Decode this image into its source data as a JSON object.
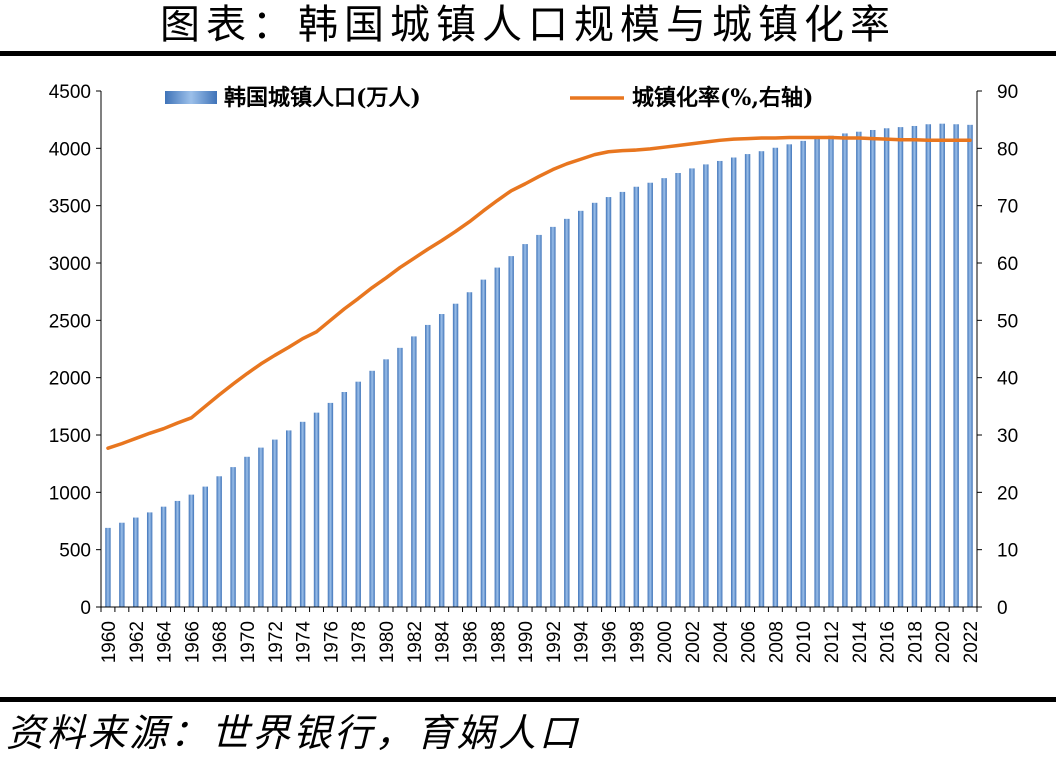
{
  "title": "图表：韩国城镇人口规模与城镇化率",
  "source": "资料来源：世界银行，育娲人口",
  "chart_data": {
    "type": "bar+line",
    "legend": [
      "韩国城镇人口(万人)",
      "城镇化率(%,右轴)"
    ],
    "legend_position": "top",
    "grid": false,
    "colors": {
      "bar": "#5b8fd0",
      "line": "#e8761f"
    },
    "left_axis": {
      "ylim": [
        0,
        4500
      ],
      "ticks": [
        0,
        500,
        1000,
        1500,
        2000,
        2500,
        3000,
        3500,
        4000,
        4500
      ]
    },
    "right_axis": {
      "ylim": [
        0,
        90
      ],
      "ticks": [
        0,
        10,
        20,
        30,
        40,
        50,
        60,
        70,
        80,
        90
      ]
    },
    "x_tick_labels": [
      "1960",
      "1962",
      "1964",
      "1966",
      "1968",
      "1970",
      "1972",
      "1974",
      "1976",
      "1978",
      "1980",
      "1982",
      "1984",
      "1986",
      "1988",
      "1990",
      "1992",
      "1994",
      "1996",
      "1998",
      "2000",
      "2002",
      "2004",
      "2006",
      "2008",
      "2010",
      "2012",
      "2014",
      "2016",
      "2018",
      "2020",
      "2022"
    ],
    "x": [
      1960,
      1961,
      1962,
      1963,
      1964,
      1965,
      1966,
      1967,
      1968,
      1969,
      1970,
      1971,
      1972,
      1973,
      1974,
      1975,
      1976,
      1977,
      1978,
      1979,
      1980,
      1981,
      1982,
      1983,
      1984,
      1985,
      1986,
      1987,
      1988,
      1989,
      1990,
      1991,
      1992,
      1993,
      1994,
      1995,
      1996,
      1997,
      1998,
      1999,
      2000,
      2001,
      2002,
      2003,
      2004,
      2005,
      2006,
      2007,
      2008,
      2009,
      2010,
      2011,
      2012,
      2013,
      2014,
      2015,
      2016,
      2017,
      2018,
      2019,
      2020,
      2021,
      2022
    ],
    "series": [
      {
        "name": "韩国城镇人口(万人)",
        "axis": "left",
        "type": "bar",
        "values": [
          690,
          735,
          780,
          825,
          875,
          925,
          980,
          1050,
          1140,
          1220,
          1310,
          1390,
          1460,
          1540,
          1615,
          1695,
          1780,
          1875,
          1965,
          2060,
          2160,
          2260,
          2360,
          2460,
          2555,
          2645,
          2745,
          2855,
          2960,
          3060,
          3165,
          3245,
          3315,
          3385,
          3455,
          3525,
          3575,
          3620,
          3665,
          3700,
          3740,
          3785,
          3825,
          3860,
          3890,
          3920,
          3950,
          3975,
          4005,
          4035,
          4065,
          4090,
          4110,
          4130,
          4145,
          4160,
          4175,
          4185,
          4195,
          4210,
          4215,
          4210,
          4205
        ]
      },
      {
        "name": "城镇化率(%,右轴)",
        "axis": "right",
        "type": "line",
        "values": [
          27.7,
          28.5,
          29.4,
          30.3,
          31.1,
          32.1,
          33.0,
          35.0,
          37.0,
          38.9,
          40.7,
          42.4,
          43.9,
          45.3,
          46.8,
          48.0,
          50.0,
          52.0,
          53.8,
          55.7,
          57.4,
          59.2,
          60.8,
          62.4,
          63.9,
          65.5,
          67.2,
          69.1,
          70.9,
          72.6,
          73.8,
          75.1,
          76.3,
          77.3,
          78.1,
          78.9,
          79.4,
          79.6,
          79.7,
          79.9,
          80.2,
          80.5,
          80.8,
          81.1,
          81.4,
          81.6,
          81.7,
          81.8,
          81.8,
          81.9,
          81.9,
          81.9,
          81.9,
          81.8,
          81.8,
          81.7,
          81.6,
          81.5,
          81.5,
          81.4,
          81.4,
          81.4,
          81.4
        ]
      }
    ]
  }
}
